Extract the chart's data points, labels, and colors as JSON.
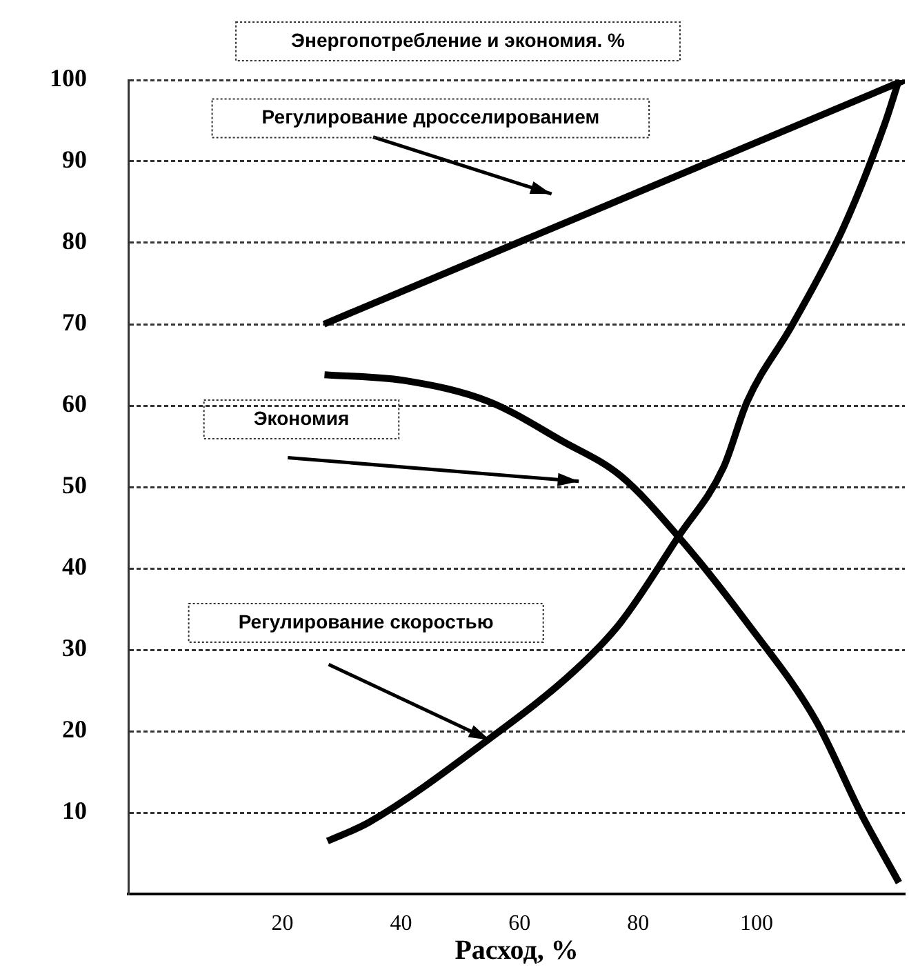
{
  "chart_data": {
    "type": "line",
    "title": "Энергопотребление и экономия. %",
    "xlabel": "Расход, %",
    "xlim": [
      -6,
      125
    ],
    "xticks": [
      20,
      40,
      60,
      80,
      100
    ],
    "ylim": [
      0,
      100
    ],
    "yticks": [
      10,
      20,
      30,
      40,
      50,
      60,
      70,
      80,
      90,
      100
    ],
    "annotations": [
      "Регулирование дросселированием",
      "Экономия",
      "Регулирование скоростью"
    ],
    "grid": "y",
    "legend": false,
    "marker": "none",
    "line_style": "solid",
    "series": [
      {
        "color": "#000000",
        "x": [
          27,
          125
        ],
        "values": [
          70,
          100
        ]
      },
      {
        "color": "#000000",
        "x": [
          27.1,
          40.4,
          54.8,
          67.3,
          77,
          86.8,
          98.4,
          110,
          117.6,
          124
        ],
        "values": [
          63.8,
          63.1,
          60.5,
          55.6,
          51.4,
          43.9,
          33.3,
          21.3,
          9.9,
          1.4
        ]
      },
      {
        "color": "#000000",
        "x": [
          27.6,
          34.6,
          54.8,
          69.4,
          77,
          86.8,
          94.4,
          98.4,
          106,
          114.6,
          121.6,
          124
        ],
        "values": [
          6.5,
          8.8,
          19,
          27.5,
          33.3,
          43.9,
          52.4,
          60.5,
          69.9,
          81.8,
          94.6,
          100
        ]
      }
    ]
  }
}
